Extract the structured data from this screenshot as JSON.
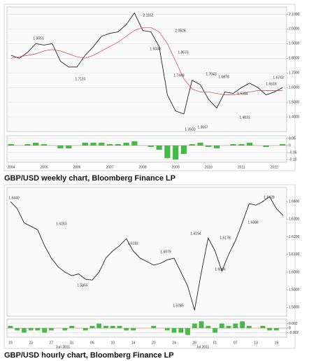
{
  "chart_data": [
    {
      "type": "line",
      "caption": "GBP/USD weekly chart, Bloomberg Finance LP",
      "categories": [
        "2004",
        null,
        null,
        null,
        "2005",
        null,
        null,
        null,
        "2006",
        null,
        null,
        null,
        "2007",
        null,
        null,
        null,
        "2008",
        null,
        null,
        null,
        "2009",
        null,
        null,
        null,
        "2010",
        null,
        null,
        null,
        "2011",
        null,
        null,
        null,
        "2012",
        null
      ],
      "series": [
        {
          "color": "#222222",
          "values": [
            1.82,
            1.8,
            1.84,
            1.9,
            1.89,
            1.9,
            1.78,
            1.74,
            1.74,
            1.82,
            1.88,
            1.95,
            1.97,
            1.98,
            2.03,
            2.11,
            1.99,
            1.98,
            1.88,
            1.55,
            1.44,
            1.42,
            1.65,
            1.62,
            1.52,
            1.46,
            1.57,
            1.56,
            1.6,
            1.63,
            1.6,
            1.55,
            1.57,
            1.6
          ]
        },
        {
          "color": "#d04040",
          "values": [
            1.8,
            1.81,
            1.82,
            1.83,
            1.85,
            1.86,
            1.85,
            1.83,
            1.81,
            1.8,
            1.82,
            1.85,
            1.88,
            1.91,
            1.95,
            1.99,
            2.01,
            2.01,
            1.98,
            1.9,
            1.78,
            1.66,
            1.59,
            1.57,
            1.57,
            1.56,
            1.55,
            1.55,
            1.56,
            1.57,
            1.58,
            1.58,
            1.58,
            1.58
          ]
        }
      ],
      "ylim": [
        1.3,
        2.15
      ],
      "yticks": [
        {
          "value": 1.4,
          "label": "1.4000"
        },
        {
          "value": 1.5,
          "label": "1.5000"
        },
        {
          "value": 1.6,
          "label": "1.6000"
        },
        {
          "value": 1.7,
          "label": "1.7000"
        },
        {
          "value": 1.8,
          "label": "1.8000"
        },
        {
          "value": 1.9,
          "label": "1.9000"
        },
        {
          "value": 2.0,
          "label": "2.0000"
        },
        {
          "value": 2.1,
          "label": "2.1000"
        }
      ],
      "grid": true,
      "annotations": [
        "2.1162",
        "1.9551",
        "2.0526",
        "1.9330",
        "1.8673",
        "1.7110",
        "1.7448",
        "1.7043",
        "1.6878",
        "1.6618",
        "1.6743",
        "1.5354",
        "1.4831",
        "1.3657",
        "1.3503"
      ]
    },
    {
      "type": "bar",
      "color": "#44bb44",
      "values": [
        0.01,
        0.0,
        0.01,
        0.02,
        0.01,
        0.0,
        -0.02,
        -0.02,
        0.0,
        0.02,
        0.02,
        0.02,
        0.01,
        0.01,
        0.02,
        0.03,
        0.0,
        -0.01,
        -0.03,
        -0.09,
        -0.1,
        -0.06,
        0.01,
        0.02,
        -0.01,
        -0.02,
        0.0,
        0.01,
        0.01,
        0.02,
        0.0,
        -0.01,
        0.0,
        0.01
      ],
      "ylim": [
        -0.12,
        0.07
      ],
      "yticks": [
        {
          "value": -0.1,
          "label": "-0.10"
        },
        {
          "value": -0.05,
          "label": "-0.05"
        },
        0,
        {
          "value": 0.05,
          "label": "0.05"
        }
      ],
      "grid": true
    },
    {
      "type": "line",
      "caption": "GBP/USD hourly chart, Bloomberg Finance LP",
      "categories": [
        "19",
        null,
        null,
        "23",
        null,
        null,
        "27",
        null,
        null,
        "31",
        null,
        null,
        "06",
        null,
        null,
        "10",
        null,
        null,
        "14",
        null,
        null,
        "20",
        null,
        null,
        "24",
        null,
        null,
        "28",
        null,
        null,
        "01",
        null,
        null,
        "07",
        null,
        null,
        "13",
        null,
        null,
        "19",
        null
      ],
      "series": [
        {
          "color": "#222222",
          "values": [
            1.64,
            1.636,
            1.628,
            1.626,
            1.624,
            1.615,
            1.608,
            1.603,
            1.6,
            1.598,
            1.599,
            1.596,
            1.5955,
            1.6,
            1.608,
            1.612,
            1.615,
            1.619,
            1.612,
            1.608,
            1.606,
            1.604,
            1.605,
            1.607,
            1.6079,
            1.6,
            1.592,
            1.5785,
            1.6,
            1.6194,
            1.612,
            1.6006,
            1.61,
            1.6178,
            1.628,
            1.6388,
            1.638,
            1.64,
            1.6428,
            1.636,
            1.632
          ]
        }
      ],
      "ylim": [
        1.575,
        1.648
      ],
      "yticks": [
        {
          "value": 1.58,
          "label": "1.5800"
        },
        {
          "value": 1.59,
          "label": "1.5900"
        },
        {
          "value": 1.6,
          "label": "1.6000"
        },
        {
          "value": 1.61,
          "label": "1.6100"
        },
        {
          "value": 1.62,
          "label": "1.6200"
        },
        {
          "value": 1.63,
          "label": "1.6300"
        },
        {
          "value": 1.64,
          "label": "1.6400"
        }
      ],
      "grid": false,
      "annotations": [
        "1.6440",
        "1.6263",
        "1.5955",
        "1.6191",
        "1.6079",
        "1.5785",
        "1.6194",
        "1.6006",
        "1.6178",
        "1.6388",
        "1.6428",
        "Jun 2011",
        "Jul 2011"
      ]
    },
    {
      "type": "bar",
      "color": "#44bb44",
      "values": [
        0.001,
        -0.001,
        -0.002,
        -0.001,
        -0.001,
        -0.002,
        -0.001,
        0.0,
        -0.001,
        0.001,
        0.0,
        -0.001,
        0.001,
        0.002,
        0.001,
        0.001,
        0.001,
        -0.001,
        -0.001,
        0.0,
        0.0,
        0.001,
        0.0,
        -0.001,
        -0.002,
        -0.002,
        -0.003,
        0.002,
        0.003,
        0.001,
        -0.002,
        0.002,
        0.001,
        0.002,
        0.003,
        0.001,
        0.0,
        0.001,
        -0.001,
        -0.001,
        0.0
      ],
      "ylim": [
        -0.004,
        0.004
      ],
      "yticks": [
        {
          "value": -0.002,
          "label": "-0.002"
        },
        0,
        {
          "value": 0.002,
          "label": "0.002"
        }
      ],
      "grid": true
    }
  ]
}
